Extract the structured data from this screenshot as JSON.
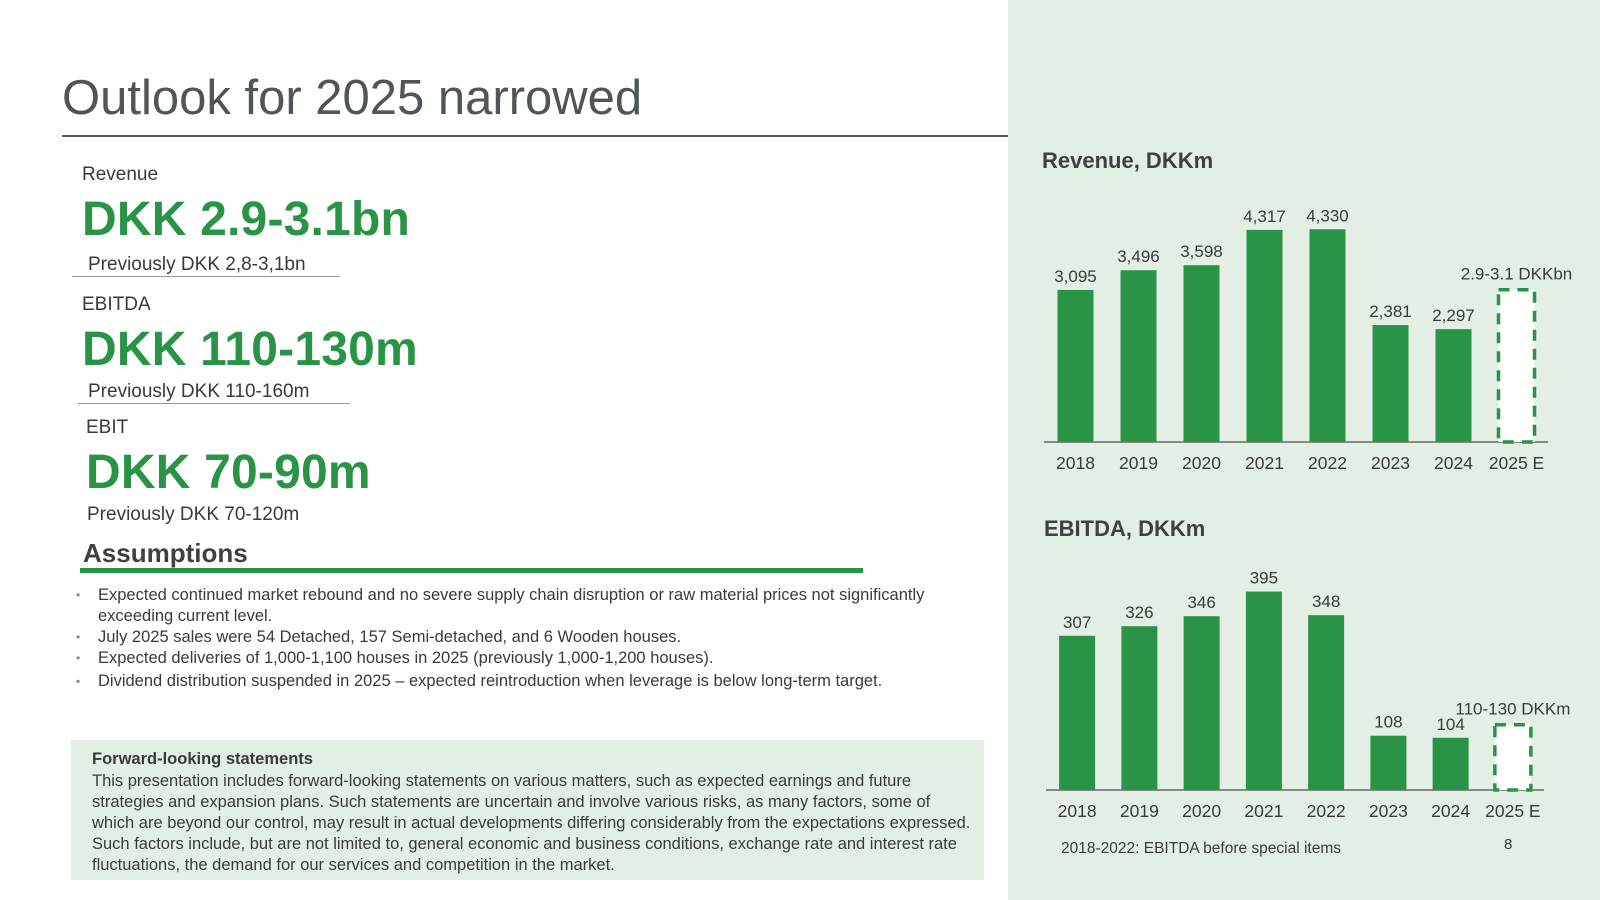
{
  "title": "Outlook for 2025 narrowed",
  "kpis": [
    {
      "label": "Revenue",
      "value": "DKK 2.9-3.1bn",
      "previous": "Previously DKK 2,8-3,1bn"
    },
    {
      "label": "EBITDA",
      "value": "DKK 110-130m",
      "previous": "Previously DKK 110-160m"
    },
    {
      "label": "EBIT",
      "value": "DKK 70-90m",
      "previous": "Previously DKK 70-120m"
    }
  ],
  "assumptions": {
    "heading": "Assumptions",
    "items": [
      "Expected continued market rebound and no severe supply chain disruption or raw material prices not significantly exceeding current level.",
      "July 2025 sales were 54 Detached, 157 Semi-detached, and 6 Wooden houses.",
      "Expected deliveries of 1,000-1,100 houses in 2025 (previously 1,000-1,200 houses).",
      "Dividend distribution suspended in 2025 – expected reintroduction when leverage is below long-term target."
    ]
  },
  "forward_looking": {
    "title": "Forward-looking statements",
    "text": "This presentation includes forward-looking statements on various matters, such as expected earnings and future strategies and expansion plans. Such statements are uncertain and involve various risks, as many factors, some of which are beyond our control, may result in actual developments differing considerably from the expectations expressed. Such factors include, but are not limited to, general economic and business conditions, exchange rate and interest rate fluctuations, the demand for our services and competition in the market."
  },
  "colors": {
    "accent": "#2a9446",
    "panel_bg": "#e3efe4",
    "text": "#3a3a3a"
  },
  "chart_data": [
    {
      "type": "bar",
      "title": "Revenue, DKKm",
      "categories": [
        "2018",
        "2019",
        "2020",
        "2021",
        "2022",
        "2023",
        "2024",
        "2025 E"
      ],
      "values": [
        3095,
        3496,
        3598,
        4317,
        4330,
        2381,
        2297,
        null
      ],
      "value_labels": [
        "3,095",
        "3,496",
        "3,598",
        "4,317",
        "4,330",
        "2,381",
        "2,297",
        ""
      ],
      "estimate": {
        "category": "2025 E",
        "range": [
          2900,
          3100
        ],
        "label": "2.9-3.1 DKKbn",
        "style": "dashed-outline"
      },
      "ylim": [
        0,
        4600
      ]
    },
    {
      "type": "bar",
      "title": "EBITDA, DKKm",
      "categories": [
        "2018",
        "2019",
        "2020",
        "2021",
        "2022",
        "2023",
        "2024",
        "2025 E"
      ],
      "values": [
        307,
        326,
        346,
        395,
        348,
        108,
        104,
        null
      ],
      "value_labels": [
        "307",
        "326",
        "346",
        "395",
        "348",
        "108",
        "104",
        ""
      ],
      "estimate": {
        "category": "2025 E",
        "range": [
          110,
          130
        ],
        "label": "110-130 DKKm",
        "style": "dashed-outline"
      },
      "ylim": [
        0,
        420
      ]
    }
  ],
  "footnote": "2018-2022: EBITDA before special items",
  "page_number": "8"
}
